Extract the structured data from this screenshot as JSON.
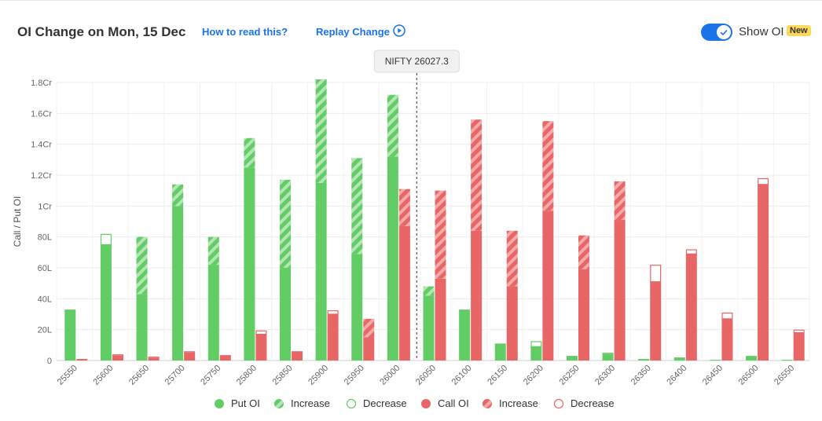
{
  "header": {
    "title": "OI Change on Mon, 15 Dec",
    "how_to_read": "How to read this?",
    "replay": "Replay Change",
    "toggle_label": "Show OI",
    "badge": "New"
  },
  "colors": {
    "put": "#62cd65",
    "put_light": "#b3e6b4",
    "call": "#e96666",
    "call_light": "#f4aaaa",
    "spot_line": "#333333"
  },
  "legend": [
    {
      "label": "Put OI",
      "style": "put-solid"
    },
    {
      "label": "Increase",
      "style": "put-hatched"
    },
    {
      "label": "Decrease",
      "style": "put-outline"
    },
    {
      "label": "Call OI",
      "style": "call-solid"
    },
    {
      "label": "Increase",
      "style": "call-hatched"
    },
    {
      "label": "Decrease",
      "style": "call-outline"
    }
  ],
  "chart_data": {
    "type": "bar",
    "ylabel": "Call / Put OI",
    "y_ticks": [
      "0",
      "20L",
      "40L",
      "60L",
      "80L",
      "1Cr",
      "1.2Cr",
      "1.4Cr",
      "1.6Cr",
      "1.8Cr"
    ],
    "ylim_lakhs": [
      0,
      180
    ],
    "spot_label": "NIFTY 26027.3",
    "spot_value": 26027.3,
    "categories": [
      "25550",
      "25600",
      "25650",
      "25700",
      "25750",
      "25800",
      "25850",
      "25900",
      "25950",
      "26000",
      "26050",
      "26100",
      "26150",
      "26200",
      "26250",
      "26300",
      "26350",
      "26400",
      "26450",
      "26500",
      "26550"
    ],
    "series": [
      {
        "name": "Put OI",
        "base_lakhs": [
          33,
          75,
          43,
          100,
          62,
          125,
          60,
          115,
          69,
          132,
          42,
          33,
          11,
          9,
          3,
          4,
          1,
          2,
          0.5,
          3,
          0.5
        ],
        "increase_lakhs": [
          0,
          0,
          37,
          14,
          18,
          19,
          57,
          67,
          62,
          40,
          6,
          0,
          0,
          0,
          0,
          0,
          0,
          0,
          0,
          0,
          0
        ],
        "decrease_lakhs": [
          0,
          7,
          0,
          0,
          0,
          0,
          0,
          0,
          0,
          0,
          0,
          0,
          0,
          3.5,
          0,
          1,
          0,
          0,
          0,
          0,
          0
        ]
      },
      {
        "name": "Call OI",
        "base_lakhs": [
          1,
          3,
          1.5,
          5,
          3.5,
          17,
          6,
          30,
          15,
          87,
          53,
          84,
          48,
          97,
          59,
          91,
          51,
          69,
          27,
          114,
          18
        ],
        "increase_lakhs": [
          0,
          0,
          0,
          0,
          0,
          0,
          0,
          0,
          12,
          24,
          57,
          72,
          36,
          58,
          22,
          25,
          0,
          0,
          0,
          0,
          0
        ],
        "decrease_lakhs": [
          0,
          1,
          1,
          1,
          0,
          2.5,
          0,
          2.5,
          0,
          0,
          0,
          0,
          0,
          0,
          0,
          0,
          11,
          3,
          4,
          4,
          2
        ]
      }
    ]
  }
}
